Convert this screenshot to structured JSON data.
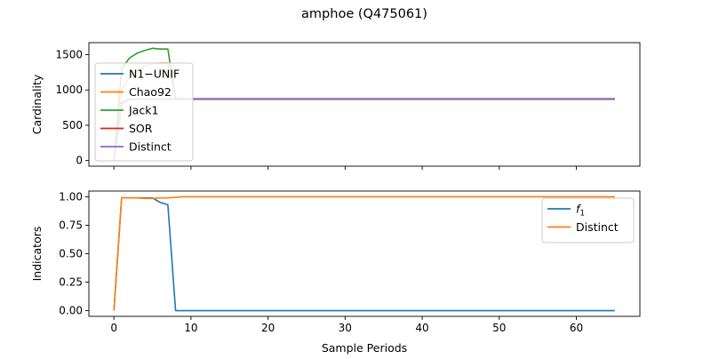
{
  "figure": {
    "title": "amphoe (Q475061)"
  },
  "chart_data": [
    {
      "type": "line",
      "ylabel": "Cardinality",
      "xlabel": "",
      "xlim": [
        -3.25,
        68.25
      ],
      "ylim": [
        -80,
        1670
      ],
      "xticks": [
        0,
        10,
        20,
        30,
        40,
        50,
        60
      ],
      "yticks": [
        0,
        500,
        1000,
        1500
      ],
      "xtick_labels_visible": false,
      "legend": "upper left",
      "series": [
        {
          "name": "N1−UNIF",
          "color": "#1f77b4",
          "x": [
            0,
            1,
            2,
            3,
            4,
            5,
            6,
            7,
            8,
            9,
            10,
            65
          ],
          "y": [
            0,
            820,
            870,
            870,
            870,
            870,
            870,
            870,
            870,
            870,
            870,
            870
          ]
        },
        {
          "name": "Chao92",
          "color": "#ff7f0e",
          "x": [
            0,
            1,
            2,
            3,
            4,
            5,
            6,
            7,
            8,
            9,
            10,
            65
          ],
          "y": [
            0,
            1000,
            1180,
            1280,
            1340,
            1370,
            1380,
            1380,
            880,
            875,
            875,
            875
          ]
        },
        {
          "name": "Jack1",
          "color": "#2ca02c",
          "x": [
            0,
            1,
            2,
            3,
            4,
            5,
            6,
            7,
            8,
            9,
            10,
            65
          ],
          "y": [
            0,
            1300,
            1450,
            1520,
            1560,
            1590,
            1580,
            1580,
            880,
            875,
            875,
            875
          ]
        },
        {
          "name": "SOR",
          "color": "#d62728",
          "x": [
            0,
            1,
            2,
            3,
            4,
            5,
            6,
            7,
            8,
            9,
            10,
            65
          ],
          "y": [
            0,
            810,
            860,
            870,
            870,
            870,
            870,
            870,
            870,
            870,
            870,
            870
          ]
        },
        {
          "name": "Distinct",
          "color": "#9467bd",
          "x": [
            0,
            1,
            2,
            3,
            4,
            5,
            6,
            7,
            8,
            9,
            10,
            65
          ],
          "y": [
            0,
            800,
            860,
            868,
            870,
            872,
            873,
            874,
            875,
            875,
            875,
            875
          ]
        }
      ]
    },
    {
      "type": "line",
      "ylabel": "Indicators",
      "xlabel": "Sample Periods",
      "xlim": [
        -3.25,
        68.25
      ],
      "ylim": [
        -0.05,
        1.05
      ],
      "xticks": [
        0,
        10,
        20,
        30,
        40,
        50,
        60
      ],
      "yticks": [
        0.0,
        0.25,
        0.5,
        0.75,
        1.0
      ],
      "ytick_labels": [
        "0.00",
        "0.25",
        "0.50",
        "0.75",
        "1.00"
      ],
      "xtick_labels_visible": true,
      "legend": "upper right",
      "series": [
        {
          "name": "f1",
          "name_sub": "1",
          "color": "#1f77b4",
          "x": [
            0,
            1,
            2,
            3,
            4,
            5,
            6,
            7,
            8,
            9,
            10,
            65
          ],
          "y": [
            0.0,
            0.99,
            0.99,
            0.99,
            0.99,
            0.99,
            0.95,
            0.93,
            0.0,
            0.0,
            0.0,
            0.0
          ]
        },
        {
          "name": "Distinct",
          "color": "#ff7f0e",
          "x": [
            0,
            1,
            2,
            3,
            4,
            5,
            6,
            7,
            8,
            9,
            10,
            65
          ],
          "y": [
            0.0,
            0.99,
            0.99,
            0.99,
            0.985,
            0.985,
            0.99,
            0.99,
            0.995,
            1.0,
            1.0,
            1.0
          ]
        }
      ]
    }
  ]
}
